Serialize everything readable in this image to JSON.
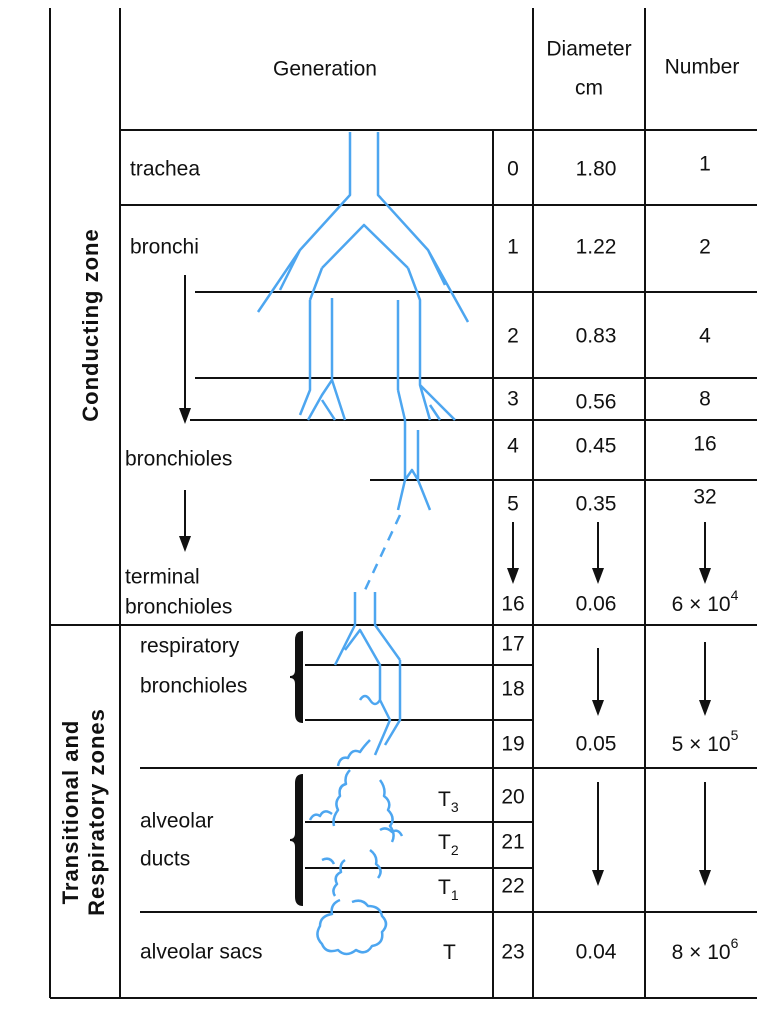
{
  "header": {
    "generation": "Generation",
    "diameter": [
      "Diameter",
      "cm"
    ],
    "number": "Number"
  },
  "zones": {
    "conducting": "Conducting zone",
    "transitional": [
      "Transitional and",
      "Respiratory zones"
    ]
  },
  "segments": [
    [
      "trachea"
    ],
    [
      "bronchi"
    ],
    [
      "bronchioles"
    ],
    [
      "terminal",
      "bronchioles"
    ],
    [
      "respiratory",
      "bronchioles"
    ],
    [
      "alveolar",
      "ducts"
    ],
    [
      "alveolar sacs"
    ]
  ],
  "generations": [
    0,
    1,
    2,
    3,
    4,
    5,
    16,
    17,
    18,
    19,
    20,
    21,
    22,
    23
  ],
  "diameters": [
    "1.80",
    "1.22",
    "0.83",
    "0.56",
    "0.45",
    "0.35",
    "0.06",
    "0.05",
    "0.04"
  ],
  "numbers": [
    1,
    2,
    4,
    8,
    16,
    32,
    {
      "base": "6 × 10",
      "exp": "4"
    },
    {
      "base": "5 × 10",
      "exp": "5"
    },
    {
      "base": "8 × 10",
      "exp": "6"
    }
  ],
  "t_labels": [
    {
      "base": "T",
      "sub": "3"
    },
    {
      "base": "T",
      "sub": "2"
    },
    {
      "base": "T",
      "sub": "1"
    },
    {
      "base": "T"
    }
  ]
}
